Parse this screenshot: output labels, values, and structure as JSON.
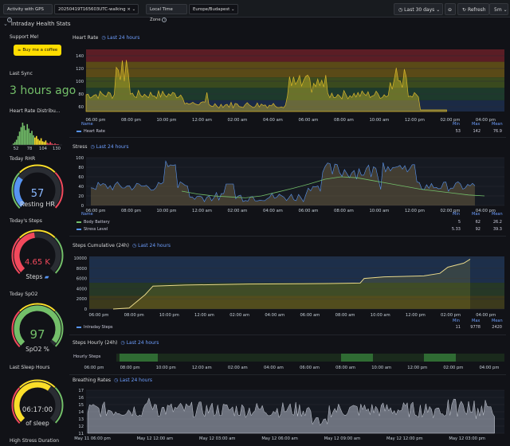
{
  "topbar": {
    "activity_label": "Activity with GPS",
    "activity_value": "20250419T165603UTC-walking",
    "tz_label": "Local Time Zone",
    "tz_value": "Europe/Budapest",
    "time_range": "Last 30 days",
    "refresh": "Refresh",
    "interval": "5m"
  },
  "row": {
    "title": "Intraday Health Stats"
  },
  "left": {
    "support_title": "Support Me!",
    "coffee_label": "Buy me a coffee",
    "last_sync_title": "Last Sync",
    "last_sync_value": "3 hours ago",
    "hr_dist_title": "Heart Rate Distribu...",
    "hr_dist_ticks": [
      "52",
      "78",
      "104",
      "130"
    ],
    "rhr_title": "Today RHR",
    "rhr_value": "57",
    "rhr_unit": "Resting HR",
    "rhr_fraction": 0.3,
    "steps_title": "Today's Steps",
    "steps_value": "4.65 K",
    "steps_unit": "Steps",
    "steps_fraction": 0.47,
    "spo2_title": "Today SpO2",
    "spo2_value": "97",
    "spo2_unit": "SpO2 %",
    "spo2_fraction": 0.97,
    "sleep_title": "Last Sleep Hours",
    "sleep_value": "06:17:00",
    "sleep_unit": "of sleep",
    "sleep_fraction": 0.63,
    "stress_title": "High Stress Duration"
  },
  "legend_headers": {
    "name": "Name",
    "min": "Min",
    "max": "Max",
    "mean": "Mean"
  },
  "time_ticks": [
    "06:00 pm",
    "08:00 pm",
    "10:00 pm",
    "12:00 am",
    "02:00 am",
    "04:00 am",
    "06:00 am",
    "08:00 am",
    "10:00 am",
    "12:00 pm",
    "02:00 pm",
    "04:00 pm"
  ],
  "heart": {
    "title": "Heart Rate",
    "range": "Last 24 hours",
    "y_ticks": [
      "140",
      "120",
      "100",
      "80",
      "60"
    ],
    "legend": [
      {
        "name": "Heart Rate",
        "color": "#5794f2",
        "min": "53",
        "max": "142",
        "mean": "76.9"
      }
    ]
  },
  "stress": {
    "title": "Stress",
    "range": "Last 24 hours",
    "y_ticks": [
      "100",
      "80",
      "60",
      "40",
      "20",
      "0"
    ],
    "legend": [
      {
        "name": "Body Battery",
        "color": "#73bf69",
        "min": "5",
        "max": "62",
        "mean": "26.2"
      },
      {
        "name": "Stress Level",
        "color": "#5794f2",
        "min": "5.33",
        "max": "92",
        "mean": "39.3"
      }
    ]
  },
  "steps_cum": {
    "title": "Steps Cumulative (24h)",
    "range": "Last 24 hours",
    "y_ticks": [
      "10000",
      "8000",
      "6000",
      "4000",
      "2000",
      "0"
    ],
    "legend": [
      {
        "name": "Intraday Steps",
        "color": "#5794f2",
        "min": "11",
        "max": "9778",
        "mean": "2420"
      }
    ]
  },
  "steps_hourly": {
    "title": "Steps Hourly (24h)",
    "range": "Last 24 hours",
    "series": "Hourly Steps",
    "time_ticks": [
      "06:00 pm",
      "08:00 pm",
      "10:00 pm",
      "12:00 am",
      "02:00 am",
      "04:00 am",
      "06:00 am",
      "08:00 am",
      "10:00 am",
      "12:00 pm",
      "02:00 pm",
      "04:00 pm"
    ]
  },
  "breathing": {
    "title": "Breathing Rates",
    "range": "Last 24 hours",
    "y_ticks": [
      "17",
      "16",
      "15",
      "14",
      "13",
      "12",
      "11"
    ],
    "time_ticks": [
      "May 11 06:00 pm",
      "May 12 12:00 am",
      "May 12 03:00 am",
      "May 12 06:00 am",
      "May 12 09:00 am",
      "May 12 12:00 pm",
      "May 12 03:00 pm"
    ]
  }
}
